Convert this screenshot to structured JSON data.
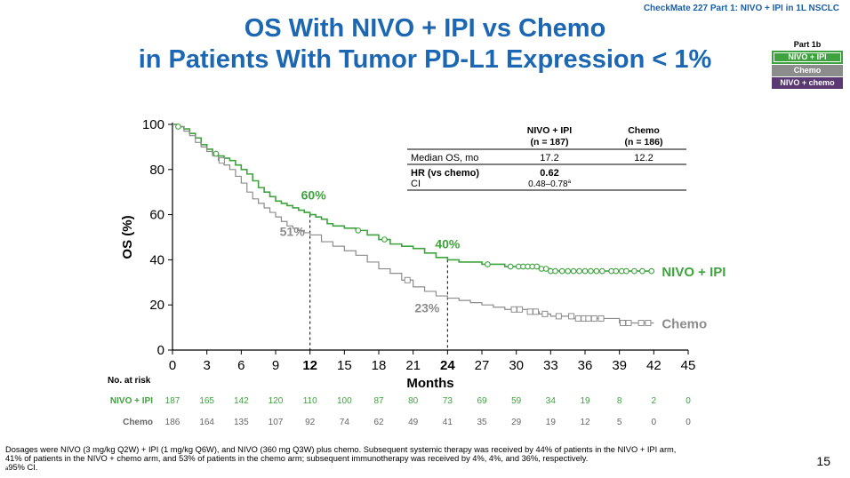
{
  "header_tag": "CheckMate 227 Part 1: NIVO + IPI in 1L NSCLC",
  "title_line1": "OS With NIVO + IPI vs Chemo",
  "title_line2": "in Patients With Tumor PD-L1 Expression < 1%",
  "legend_box": {
    "title": "Part 1b",
    "items": [
      "NIVO + IPI",
      "Chemo",
      "NIVO + chemo"
    ]
  },
  "colors": {
    "nivo_ipi": "#3ea33e",
    "chemo": "#8c8c8c",
    "nivo_chemo": "#5b3a74",
    "title": "#1b67b3"
  },
  "chart_data": {
    "type": "line",
    "subtype": "kaplan-meier",
    "xlabel": "Months",
    "ylabel": "OS (%)",
    "xlim": [
      0,
      45
    ],
    "ylim": [
      0,
      100
    ],
    "x_ticks": [
      0,
      3,
      6,
      9,
      12,
      15,
      18,
      21,
      24,
      27,
      30,
      33,
      36,
      39,
      42,
      45
    ],
    "x_ticks_bold": [
      12,
      24
    ],
    "y_ticks": [
      0,
      20,
      40,
      60,
      80,
      100
    ],
    "series": [
      {
        "name": "NIVO + IPI",
        "color": "#3ea33e",
        "end_label": "NIVO + IPI",
        "points": [
          [
            0,
            100
          ],
          [
            0.5,
            99
          ],
          [
            1,
            98
          ],
          [
            1.5,
            96
          ],
          [
            2,
            94
          ],
          [
            2.5,
            91
          ],
          [
            3,
            89
          ],
          [
            3.5,
            87
          ],
          [
            4,
            86
          ],
          [
            4.5,
            85
          ],
          [
            5,
            84
          ],
          [
            5.5,
            82
          ],
          [
            6,
            80
          ],
          [
            6.5,
            78
          ],
          [
            7,
            75
          ],
          [
            7.5,
            72
          ],
          [
            8,
            70
          ],
          [
            8.5,
            68
          ],
          [
            9,
            66
          ],
          [
            9.5,
            65
          ],
          [
            10,
            64
          ],
          [
            10.5,
            63
          ],
          [
            11,
            62
          ],
          [
            11.5,
            61
          ],
          [
            12,
            60
          ],
          [
            12.5,
            59
          ],
          [
            13,
            58
          ],
          [
            13.5,
            56
          ],
          [
            14,
            55
          ],
          [
            15,
            54
          ],
          [
            16,
            53
          ],
          [
            17,
            51
          ],
          [
            18,
            49
          ],
          [
            19,
            47
          ],
          [
            20,
            46
          ],
          [
            21,
            45
          ],
          [
            22,
            43
          ],
          [
            23,
            41
          ],
          [
            24,
            40
          ],
          [
            25,
            39
          ],
          [
            26,
            39
          ],
          [
            27,
            38
          ],
          [
            28,
            38
          ],
          [
            29,
            37
          ],
          [
            30,
            37
          ],
          [
            31,
            37
          ],
          [
            32,
            36
          ],
          [
            33,
            35
          ],
          [
            34,
            35
          ],
          [
            35,
            35
          ],
          [
            36,
            35
          ],
          [
            37,
            35
          ],
          [
            38,
            35
          ],
          [
            39,
            35
          ],
          [
            40,
            35
          ],
          [
            41,
            35
          ],
          [
            42,
            35
          ]
        ],
        "censored_x": [
          0.5,
          3.8,
          16.2,
          18.5,
          27.5,
          29.5,
          30.2,
          30.6,
          31,
          31.4,
          31.8,
          32.2,
          32.6,
          33,
          33.4,
          34,
          34.5,
          35,
          35.5,
          36,
          36.5,
          37,
          37.5,
          38.3,
          38.7,
          39.2,
          39.6,
          40.3,
          41,
          41.8
        ]
      },
      {
        "name": "Chemo",
        "color": "#8c8c8c",
        "end_label": "Chemo",
        "points": [
          [
            0,
            100
          ],
          [
            0.5,
            99
          ],
          [
            1,
            97
          ],
          [
            1.5,
            95
          ],
          [
            2,
            92
          ],
          [
            2.5,
            90
          ],
          [
            3,
            88
          ],
          [
            3.5,
            86
          ],
          [
            4,
            84
          ],
          [
            4.5,
            82
          ],
          [
            5,
            80
          ],
          [
            5.5,
            77
          ],
          [
            6,
            74
          ],
          [
            6.5,
            70
          ],
          [
            7,
            67
          ],
          [
            7.5,
            65
          ],
          [
            8,
            63
          ],
          [
            8.5,
            61
          ],
          [
            9,
            59
          ],
          [
            9.5,
            57
          ],
          [
            10,
            55
          ],
          [
            10.5,
            54
          ],
          [
            11,
            53
          ],
          [
            11.5,
            52
          ],
          [
            12,
            51
          ],
          [
            13,
            48
          ],
          [
            14,
            46
          ],
          [
            15,
            44
          ],
          [
            16,
            42
          ],
          [
            17,
            39
          ],
          [
            18,
            36
          ],
          [
            19,
            34
          ],
          [
            20,
            31
          ],
          [
            21,
            28
          ],
          [
            22,
            26
          ],
          [
            23,
            24
          ],
          [
            24,
            23
          ],
          [
            25,
            22
          ],
          [
            26,
            21
          ],
          [
            27,
            20
          ],
          [
            28,
            19
          ],
          [
            29,
            18
          ],
          [
            30,
            18
          ],
          [
            31,
            17
          ],
          [
            32,
            16
          ],
          [
            33,
            15
          ],
          [
            34,
            15
          ],
          [
            35,
            14
          ],
          [
            36,
            14
          ],
          [
            37,
            14
          ],
          [
            38,
            14
          ],
          [
            39,
            12
          ],
          [
            40,
            12
          ],
          [
            41,
            12
          ],
          [
            42,
            12
          ]
        ],
        "censored_x": [
          4.3,
          20.5,
          29.8,
          30.3,
          31.2,
          31.7,
          32.5,
          33.7,
          34.8,
          35.4,
          35.9,
          36.3,
          36.8,
          37.4,
          39.3,
          39.8,
          40.9,
          41.5
        ]
      }
    ],
    "annotations": [
      {
        "text": "60%",
        "x": 12,
        "y": 60,
        "series": "NIVO + IPI"
      },
      {
        "text": "51%",
        "x": 12,
        "y": 51,
        "series": "Chemo"
      },
      {
        "text": "40%",
        "x": 24,
        "y": 40,
        "series": "NIVO + IPI"
      },
      {
        "text": "23%",
        "x": 24,
        "y": 23,
        "series": "Chemo"
      }
    ],
    "stats_table": {
      "columns": [
        "",
        "NIVO + IPI\n(n = 187)",
        "Chemo\n(n = 186)"
      ],
      "col1_header_l1": "NIVO + IPI",
      "col1_header_l2": "(n = 187)",
      "col2_header_l1": "Chemo",
      "col2_header_l2": "(n = 186)",
      "rows": [
        {
          "label": "Median OS, mo",
          "nivo": "17.2",
          "chemo": "12.2"
        },
        {
          "label": "HR (vs chemo)",
          "nivo": "0.62",
          "chemo": ""
        },
        {
          "label": "CI",
          "nivo": "0.48–0.78",
          "nivo_sup": "a",
          "chemo": ""
        }
      ]
    },
    "at_risk": {
      "title": "No. at risk",
      "rows": [
        {
          "name": "NIVO + IPI",
          "values": [
            "187",
            "165",
            "142",
            "120",
            "110",
            "100",
            "87",
            "80",
            "73",
            "69",
            "59",
            "34",
            "19",
            "8",
            "2",
            "0"
          ]
        },
        {
          "name": "Chemo",
          "values": [
            "186",
            "164",
            "135",
            "107",
            "92",
            "74",
            "62",
            "49",
            "41",
            "35",
            "29",
            "19",
            "12",
            "5",
            "0",
            "0"
          ]
        }
      ]
    }
  },
  "footnote_line1": "Dosages were NIVO (3 mg/kg Q2W) + IPI (1 mg/kg Q6W), and NIVO (360 mg Q3W) plus chemo. Subsequent systemic therapy was received by 44% of patients in the NIVO + IPI arm,",
  "footnote_line2": "41% of patients in the NIVO + chemo arm, and 53% of patients in the chemo arm; subsequent immunotherapy was received by 4%, 4%, and 36%, respectively.",
  "footnote_line3_sup": "a",
  "footnote_line3": "95% CI.",
  "page_number": "15"
}
